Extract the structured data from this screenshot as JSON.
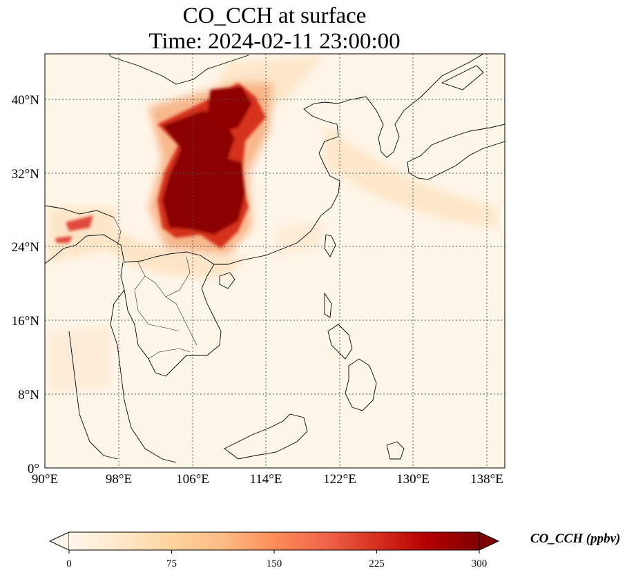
{
  "title": {
    "line1": "CO_CCH at surface",
    "line2": "Time: 2024-02-11 23:00:00"
  },
  "map": {
    "lon_range": [
      90,
      140
    ],
    "lat_range": [
      0,
      44
    ],
    "lon_ticks": [
      "90°E",
      "98°E",
      "106°E",
      "114°E",
      "122°E",
      "130°E",
      "138°E"
    ],
    "lon_values": [
      90,
      98,
      106,
      114,
      122,
      130,
      138
    ],
    "lat_ticks": [
      "0°",
      "8°N",
      "16°N",
      "24°N",
      "32°N",
      "40°N"
    ],
    "lat_values": [
      0,
      8,
      16,
      24,
      32,
      40
    ],
    "gridlines": "dotted",
    "coastlines": true
  },
  "colorbar": {
    "title": "CO_CCH (ppbv)",
    "ticks": [
      "0",
      "75",
      "150",
      "225",
      "300"
    ],
    "tick_values": [
      0,
      75,
      150,
      225,
      300
    ],
    "min": 0,
    "max": 300,
    "extend": "both",
    "colormap": "OrRd",
    "colors": [
      "#fff7ec",
      "#fee8c8",
      "#fdd49e",
      "#fdbb84",
      "#fc8d59",
      "#ef6548",
      "#d7301f",
      "#b30000",
      "#7f0000"
    ]
  }
}
